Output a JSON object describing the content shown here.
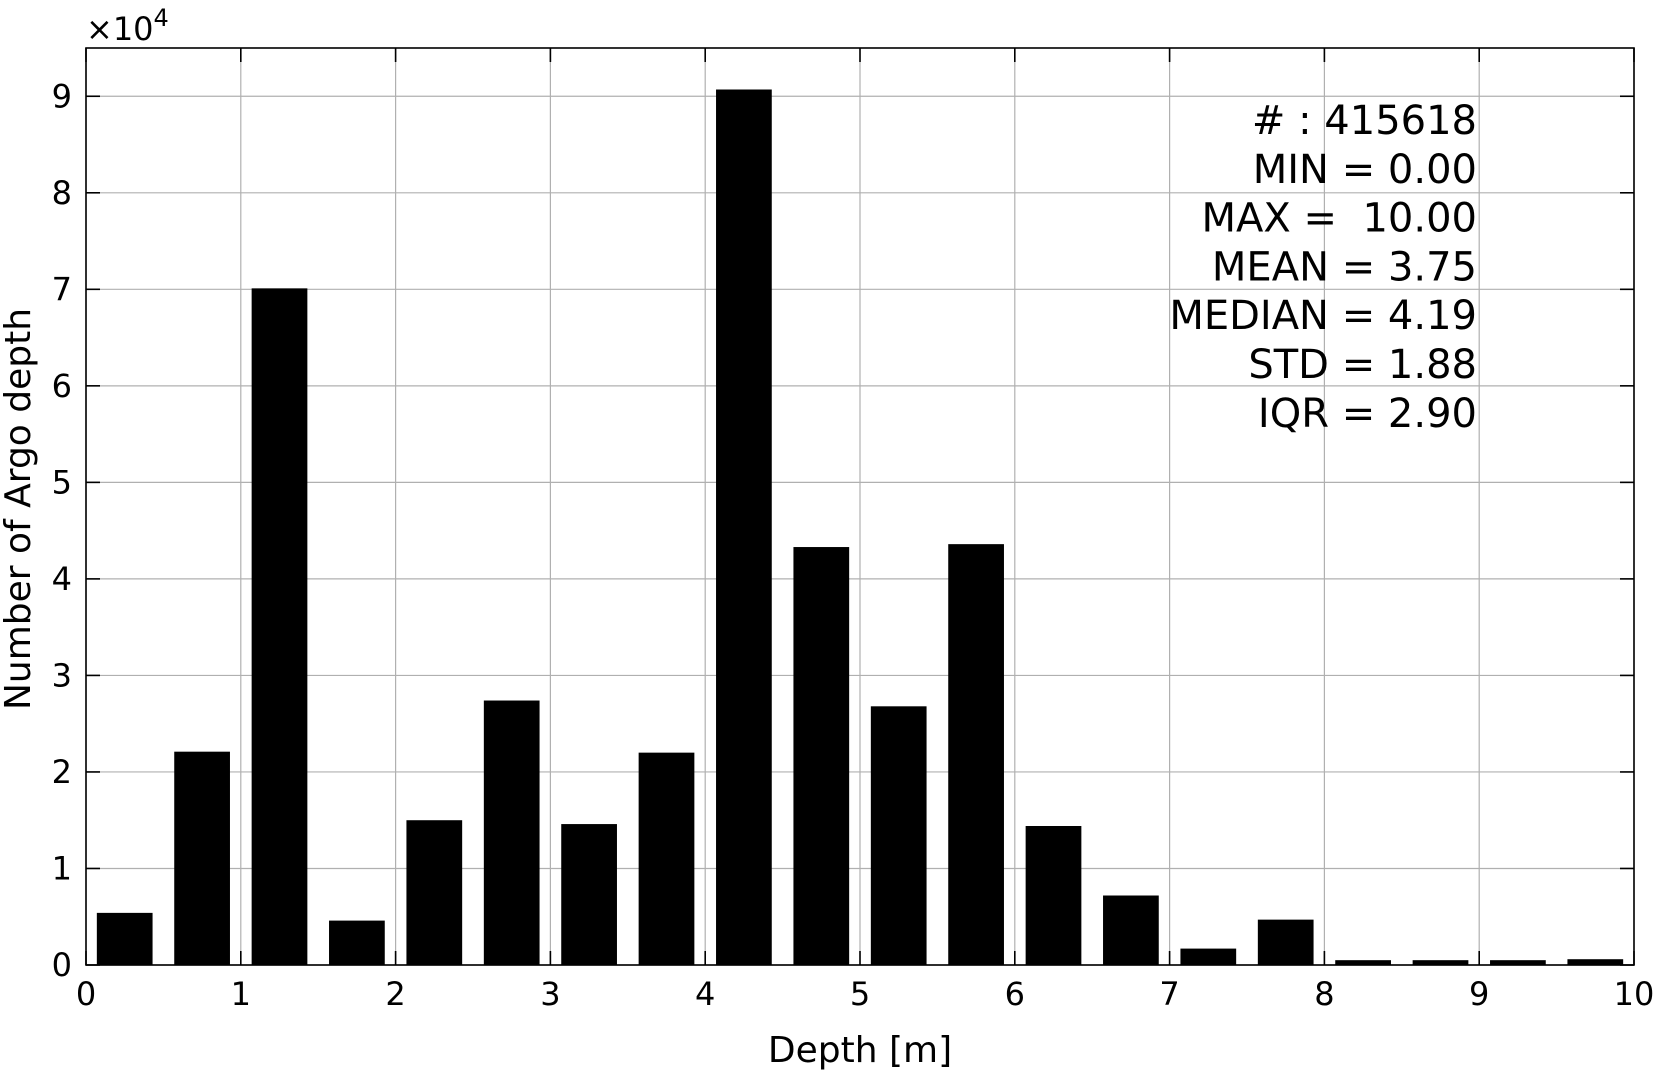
{
  "chart_data": {
    "type": "bar",
    "xlabel": "Depth [m]",
    "ylabel": "Number of Argo depth",
    "y_multiplier_label": "×10",
    "y_multiplier_exponent": "4",
    "xlim": [
      0,
      10
    ],
    "ylim": [
      0,
      95000
    ],
    "grid": true,
    "bar_color": "#000000",
    "xticks": [
      0,
      1,
      2,
      3,
      4,
      5,
      6,
      7,
      8,
      9,
      10
    ],
    "xtick_labels": [
      "0",
      "1",
      "2",
      "3",
      "4",
      "5",
      "6",
      "7",
      "8",
      "9",
      "10"
    ],
    "yticks": [
      0,
      10000,
      20000,
      30000,
      40000,
      50000,
      60000,
      70000,
      80000,
      90000
    ],
    "ytick_labels": [
      "0",
      "1",
      "2",
      "3",
      "4",
      "5",
      "6",
      "7",
      "8",
      "9"
    ],
    "bin_width": 0.5,
    "bin_centers": [
      0.25,
      0.75,
      1.25,
      1.75,
      2.25,
      2.75,
      3.25,
      3.75,
      4.25,
      4.75,
      5.25,
      5.75,
      6.25,
      6.75,
      7.25,
      7.75,
      8.25,
      8.75,
      9.25,
      9.75
    ],
    "values": [
      5400,
      22100,
      70100,
      4600,
      15000,
      27400,
      14600,
      22000,
      90700,
      43300,
      26800,
      43600,
      14400,
      7200,
      1700,
      4700,
      500,
      500,
      500,
      600
    ],
    "stats": [
      "# : 415618",
      "MIN = 0.00",
      "MAX =  10.00",
      "MEAN = 3.75",
      "MEDIAN = 4.19",
      "STD = 1.88",
      "IQR = 2.90"
    ]
  }
}
